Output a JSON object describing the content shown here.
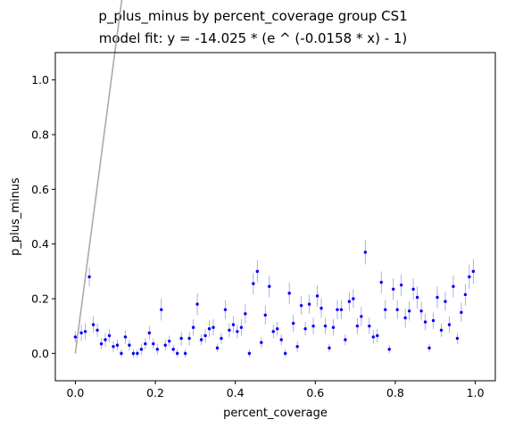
{
  "chart_data": {
    "type": "scatter",
    "title": "p_plus_minus by percent_coverage group CS1",
    "subtitle": "model fit: y = -14.025 * (e ^ (-0.0158 * x) - 1)",
    "xlabel": "percent_coverage",
    "ylabel": "p_plus_minus",
    "xlim": [
      -0.05,
      1.05
    ],
    "ylim": [
      -0.1,
      1.1
    ],
    "x_ticks": [
      0.0,
      0.2,
      0.4,
      0.6,
      0.8,
      1.0
    ],
    "x_tick_labels": [
      "0.0",
      "0.2",
      "0.4",
      "0.6",
      "0.8",
      "1.0"
    ],
    "y_ticks": [
      0.0,
      0.2,
      0.4,
      0.6,
      0.8,
      1.0
    ],
    "y_tick_labels": [
      "0.0",
      "0.2",
      "0.4",
      "0.6",
      "0.8",
      "1.0"
    ],
    "grid": false,
    "point_color": "#0000ff",
    "errorbar_color": "#9a9aee",
    "fit_color": "#aaaaaa",
    "fit": {
      "a": -14.025,
      "b": -0.0158
    },
    "points": [
      [
        0.0,
        0.06,
        0.02
      ],
      [
        0.015,
        0.075,
        0.03
      ],
      [
        0.025,
        0.08,
        0.03
      ],
      [
        0.035,
        0.28,
        0.035
      ],
      [
        0.045,
        0.105,
        0.03
      ],
      [
        0.055,
        0.085,
        0.025
      ],
      [
        0.065,
        0.035,
        0.02
      ],
      [
        0.075,
        0.05,
        0.025
      ],
      [
        0.085,
        0.065,
        0.025
      ],
      [
        0.095,
        0.025,
        0.02
      ],
      [
        0.105,
        0.03,
        0.02
      ],
      [
        0.115,
        0.0,
        0.015
      ],
      [
        0.125,
        0.06,
        0.025
      ],
      [
        0.135,
        0.03,
        0.02
      ],
      [
        0.145,
        0.0,
        0.015
      ],
      [
        0.155,
        0.0,
        0.015
      ],
      [
        0.165,
        0.015,
        0.02
      ],
      [
        0.175,
        0.035,
        0.02
      ],
      [
        0.185,
        0.075,
        0.025
      ],
      [
        0.195,
        0.035,
        0.02
      ],
      [
        0.205,
        0.015,
        0.02
      ],
      [
        0.215,
        0.16,
        0.04
      ],
      [
        0.225,
        0.03,
        0.02
      ],
      [
        0.235,
        0.045,
        0.02
      ],
      [
        0.245,
        0.015,
        0.015
      ],
      [
        0.255,
        0.0,
        0.015
      ],
      [
        0.265,
        0.055,
        0.025
      ],
      [
        0.275,
        0.0,
        0.015
      ],
      [
        0.285,
        0.055,
        0.025
      ],
      [
        0.295,
        0.095,
        0.03
      ],
      [
        0.305,
        0.18,
        0.04
      ],
      [
        0.315,
        0.05,
        0.02
      ],
      [
        0.325,
        0.065,
        0.025
      ],
      [
        0.335,
        0.09,
        0.03
      ],
      [
        0.345,
        0.095,
        0.03
      ],
      [
        0.355,
        0.02,
        0.015
      ],
      [
        0.365,
        0.055,
        0.02
      ],
      [
        0.375,
        0.16,
        0.035
      ],
      [
        0.385,
        0.085,
        0.025
      ],
      [
        0.395,
        0.105,
        0.03
      ],
      [
        0.405,
        0.08,
        0.025
      ],
      [
        0.415,
        0.095,
        0.03
      ],
      [
        0.425,
        0.145,
        0.035
      ],
      [
        0.435,
        0.0,
        0.015
      ],
      [
        0.445,
        0.255,
        0.04
      ],
      [
        0.455,
        0.3,
        0.04
      ],
      [
        0.465,
        0.04,
        0.02
      ],
      [
        0.475,
        0.14,
        0.035
      ],
      [
        0.485,
        0.245,
        0.04
      ],
      [
        0.495,
        0.08,
        0.025
      ],
      [
        0.505,
        0.09,
        0.025
      ],
      [
        0.515,
        0.05,
        0.02
      ],
      [
        0.525,
        0.0,
        0.015
      ],
      [
        0.535,
        0.22,
        0.04
      ],
      [
        0.545,
        0.11,
        0.03
      ],
      [
        0.555,
        0.025,
        0.02
      ],
      [
        0.565,
        0.175,
        0.035
      ],
      [
        0.575,
        0.09,
        0.025
      ],
      [
        0.585,
        0.18,
        0.035
      ],
      [
        0.595,
        0.1,
        0.03
      ],
      [
        0.605,
        0.21,
        0.04
      ],
      [
        0.615,
        0.165,
        0.035
      ],
      [
        0.625,
        0.1,
        0.03
      ],
      [
        0.635,
        0.02,
        0.015
      ],
      [
        0.645,
        0.095,
        0.03
      ],
      [
        0.655,
        0.16,
        0.035
      ],
      [
        0.665,
        0.16,
        0.035
      ],
      [
        0.675,
        0.05,
        0.02
      ],
      [
        0.685,
        0.19,
        0.035
      ],
      [
        0.695,
        0.2,
        0.035
      ],
      [
        0.705,
        0.1,
        0.03
      ],
      [
        0.715,
        0.135,
        0.035
      ],
      [
        0.725,
        0.37,
        0.045
      ],
      [
        0.735,
        0.1,
        0.03
      ],
      [
        0.745,
        0.06,
        0.025
      ],
      [
        0.755,
        0.065,
        0.025
      ],
      [
        0.765,
        0.26,
        0.04
      ],
      [
        0.775,
        0.16,
        0.035
      ],
      [
        0.785,
        0.015,
        0.015
      ],
      [
        0.795,
        0.235,
        0.04
      ],
      [
        0.805,
        0.16,
        0.035
      ],
      [
        0.815,
        0.25,
        0.04
      ],
      [
        0.825,
        0.13,
        0.035
      ],
      [
        0.835,
        0.155,
        0.035
      ],
      [
        0.845,
        0.235,
        0.04
      ],
      [
        0.855,
        0.205,
        0.04
      ],
      [
        0.865,
        0.155,
        0.035
      ],
      [
        0.875,
        0.115,
        0.03
      ],
      [
        0.885,
        0.02,
        0.015
      ],
      [
        0.895,
        0.12,
        0.03
      ],
      [
        0.905,
        0.205,
        0.04
      ],
      [
        0.915,
        0.085,
        0.025
      ],
      [
        0.925,
        0.19,
        0.035
      ],
      [
        0.935,
        0.105,
        0.03
      ],
      [
        0.945,
        0.245,
        0.04
      ],
      [
        0.955,
        0.055,
        0.02
      ],
      [
        0.965,
        0.15,
        0.035
      ],
      [
        0.975,
        0.215,
        0.04
      ],
      [
        0.985,
        0.28,
        0.045
      ],
      [
        0.995,
        0.3,
        0.045
      ]
    ]
  }
}
